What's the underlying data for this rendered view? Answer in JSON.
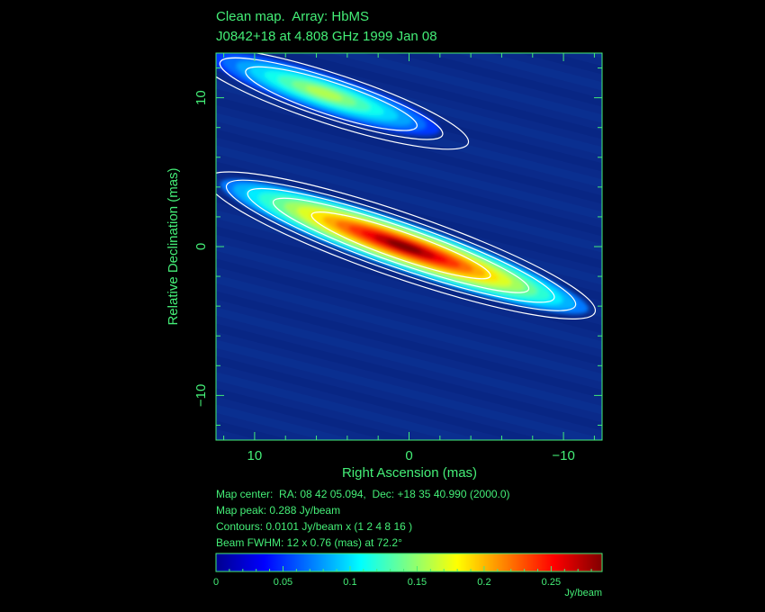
{
  "header": {
    "line1": "Clean map.  Array: HbMS",
    "line2": "J0842+18 at 4.808 GHz 1999 Jan 08"
  },
  "info": {
    "map_center": "Map center:  RA: 08 42 05.094,  Dec: +18 35 40.990 (2000.0)",
    "map_peak": "Map peak: 0.288 Jy/beam",
    "contours": "Contours: 0.0101 Jy/beam x (1 2 4 8 16 )",
    "beam": "Beam FWHM: 12 x 0.76 (mas) at 72.2°"
  },
  "colors": {
    "axis": "#44ee77",
    "background_map": "#0a2a8a",
    "contour": "#ffffff"
  },
  "chart_data": {
    "type": "heatmap",
    "xlabel": "Right Ascension  (mas)",
    "ylabel": "Relative Declination  (mas)",
    "xlim": [
      12.5,
      -12.5
    ],
    "ylim": [
      -13,
      13
    ],
    "x_ticks": [
      10,
      0,
      -10
    ],
    "x_tick_labels": [
      "10",
      "0",
      "−10"
    ],
    "y_ticks": [
      10,
      0,
      -10
    ],
    "y_tick_labels": [
      "10",
      "0",
      "−10"
    ],
    "contour_levels": [
      0.0101,
      0.0202,
      0.0404,
      0.0808,
      0.1616
    ],
    "components": [
      {
        "x": 0.3,
        "y": 0.0,
        "peak": 0.288
      },
      {
        "x": 5.5,
        "y": 10.3,
        "peak": 0.14
      }
    ],
    "colorbar": {
      "ticks": [
        0,
        0.05,
        0.1,
        0.15,
        0.2,
        0.25
      ],
      "tick_labels": [
        "0",
        "0.05",
        "0.1",
        "0.15",
        "0.2",
        "0.25"
      ],
      "range": [
        0,
        0.288
      ],
      "unit": "Jy/beam"
    }
  }
}
